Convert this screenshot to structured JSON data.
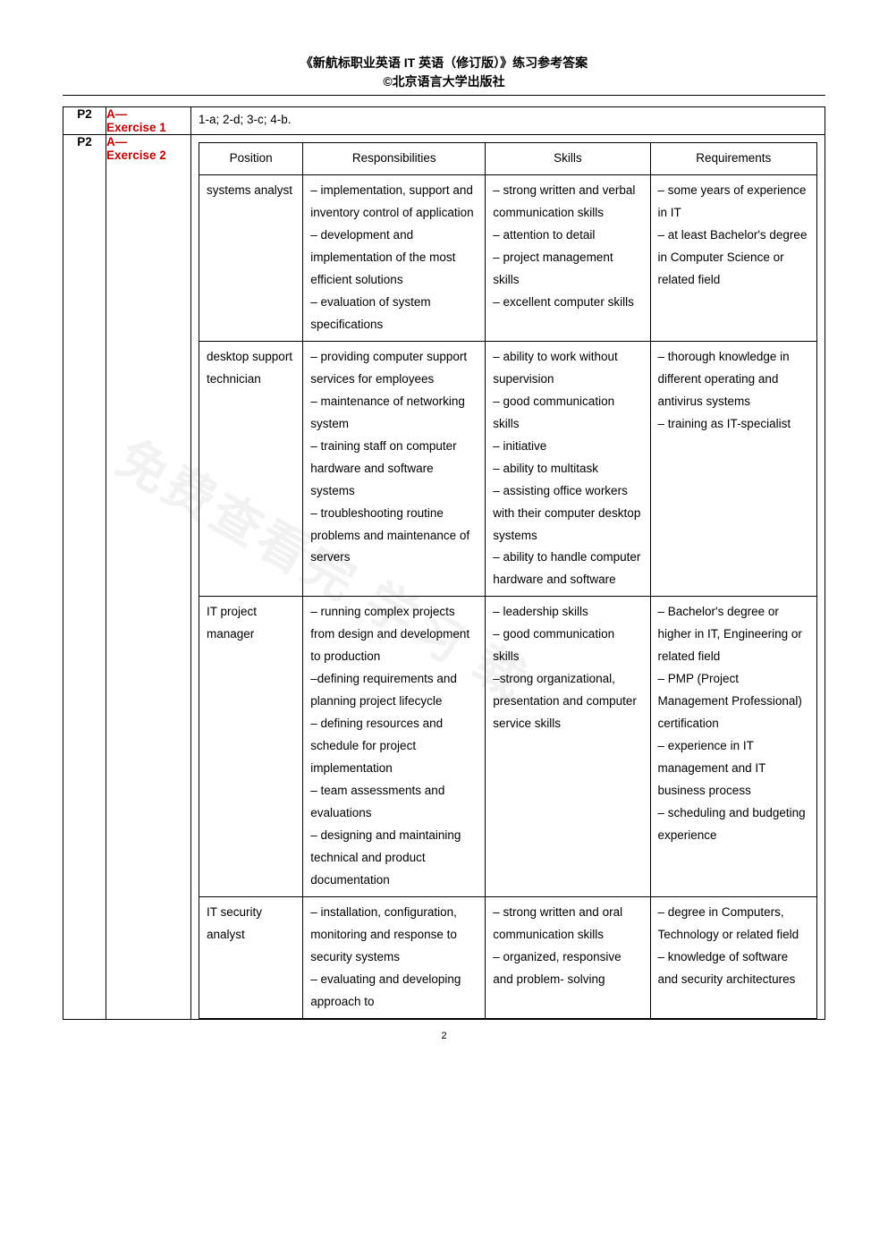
{
  "header": {
    "line1": "《新航标职业英语 IT 英语（修订版）》练习参考答案",
    "line2": "©北京语言大学出版社"
  },
  "rows": [
    {
      "p": "P2",
      "ex_a": "A—",
      "ex_label": "Exercise 1",
      "answer": "1-a; 2-d; 3-c; 4-b."
    },
    {
      "p": "P2",
      "ex_a": "A—",
      "ex_label": "Exercise 2",
      "table": {
        "headers": [
          "Position",
          "Responsibilities",
          "Skills",
          "Requirements"
        ],
        "body": [
          {
            "position": "systems analyst",
            "responsibilities": "– implementation, support and inventory control of application\n– development and implementation of the most efficient solutions\n– evaluation of system specifications",
            "skills": "– strong written and verbal communication skills\n– attention to detail\n– project management skills\n– excellent computer skills",
            "requirements": "– some years of experience in IT\n– at least Bachelor's degree in Computer Science or related field"
          },
          {
            "position": "desktop support technician",
            "responsibilities": "– providing computer support services for employees\n– maintenance of networking system\n– training staff on computer hardware and software systems\n– troubleshooting routine problems and maintenance of servers",
            "skills": "– ability to work without supervision\n– good communication skills\n– initiative\n– ability to multitask\n– assisting office workers with their computer desktop systems\n– ability to handle computer hardware and software",
            "requirements": "– thorough knowledge in different operating and antivirus systems\n– training as IT-specialist"
          },
          {
            "position": "IT project manager",
            "responsibilities": "– running complex projects from design and development to production\n–defining requirements and planning project lifecycle\n– defining resources and schedule for project implementation\n– team assessments and evaluations\n– designing and maintaining technical and product documentation",
            "skills": "– leadership skills\n– good communication skills\n–strong organizational, presentation and computer service skills",
            "requirements": "– Bachelor's degree or higher in IT, Engineering or related field\n– PMP (Project Management Professional) certification\n– experience in IT management and IT business process\n– scheduling and budgeting experience"
          },
          {
            "position": "IT security analyst",
            "responsibilities": "– installation, configuration, monitoring and response to security systems\n– evaluating and developing approach to",
            "skills": "– strong written and oral communication skills\n– organized, responsive and problem- solving",
            "requirements": "– degree in Computers, Technology or related field\n– knowledge of software and security architectures"
          }
        ]
      }
    }
  ],
  "page_number": "2",
  "watermark": "免费查看完 学习 载"
}
